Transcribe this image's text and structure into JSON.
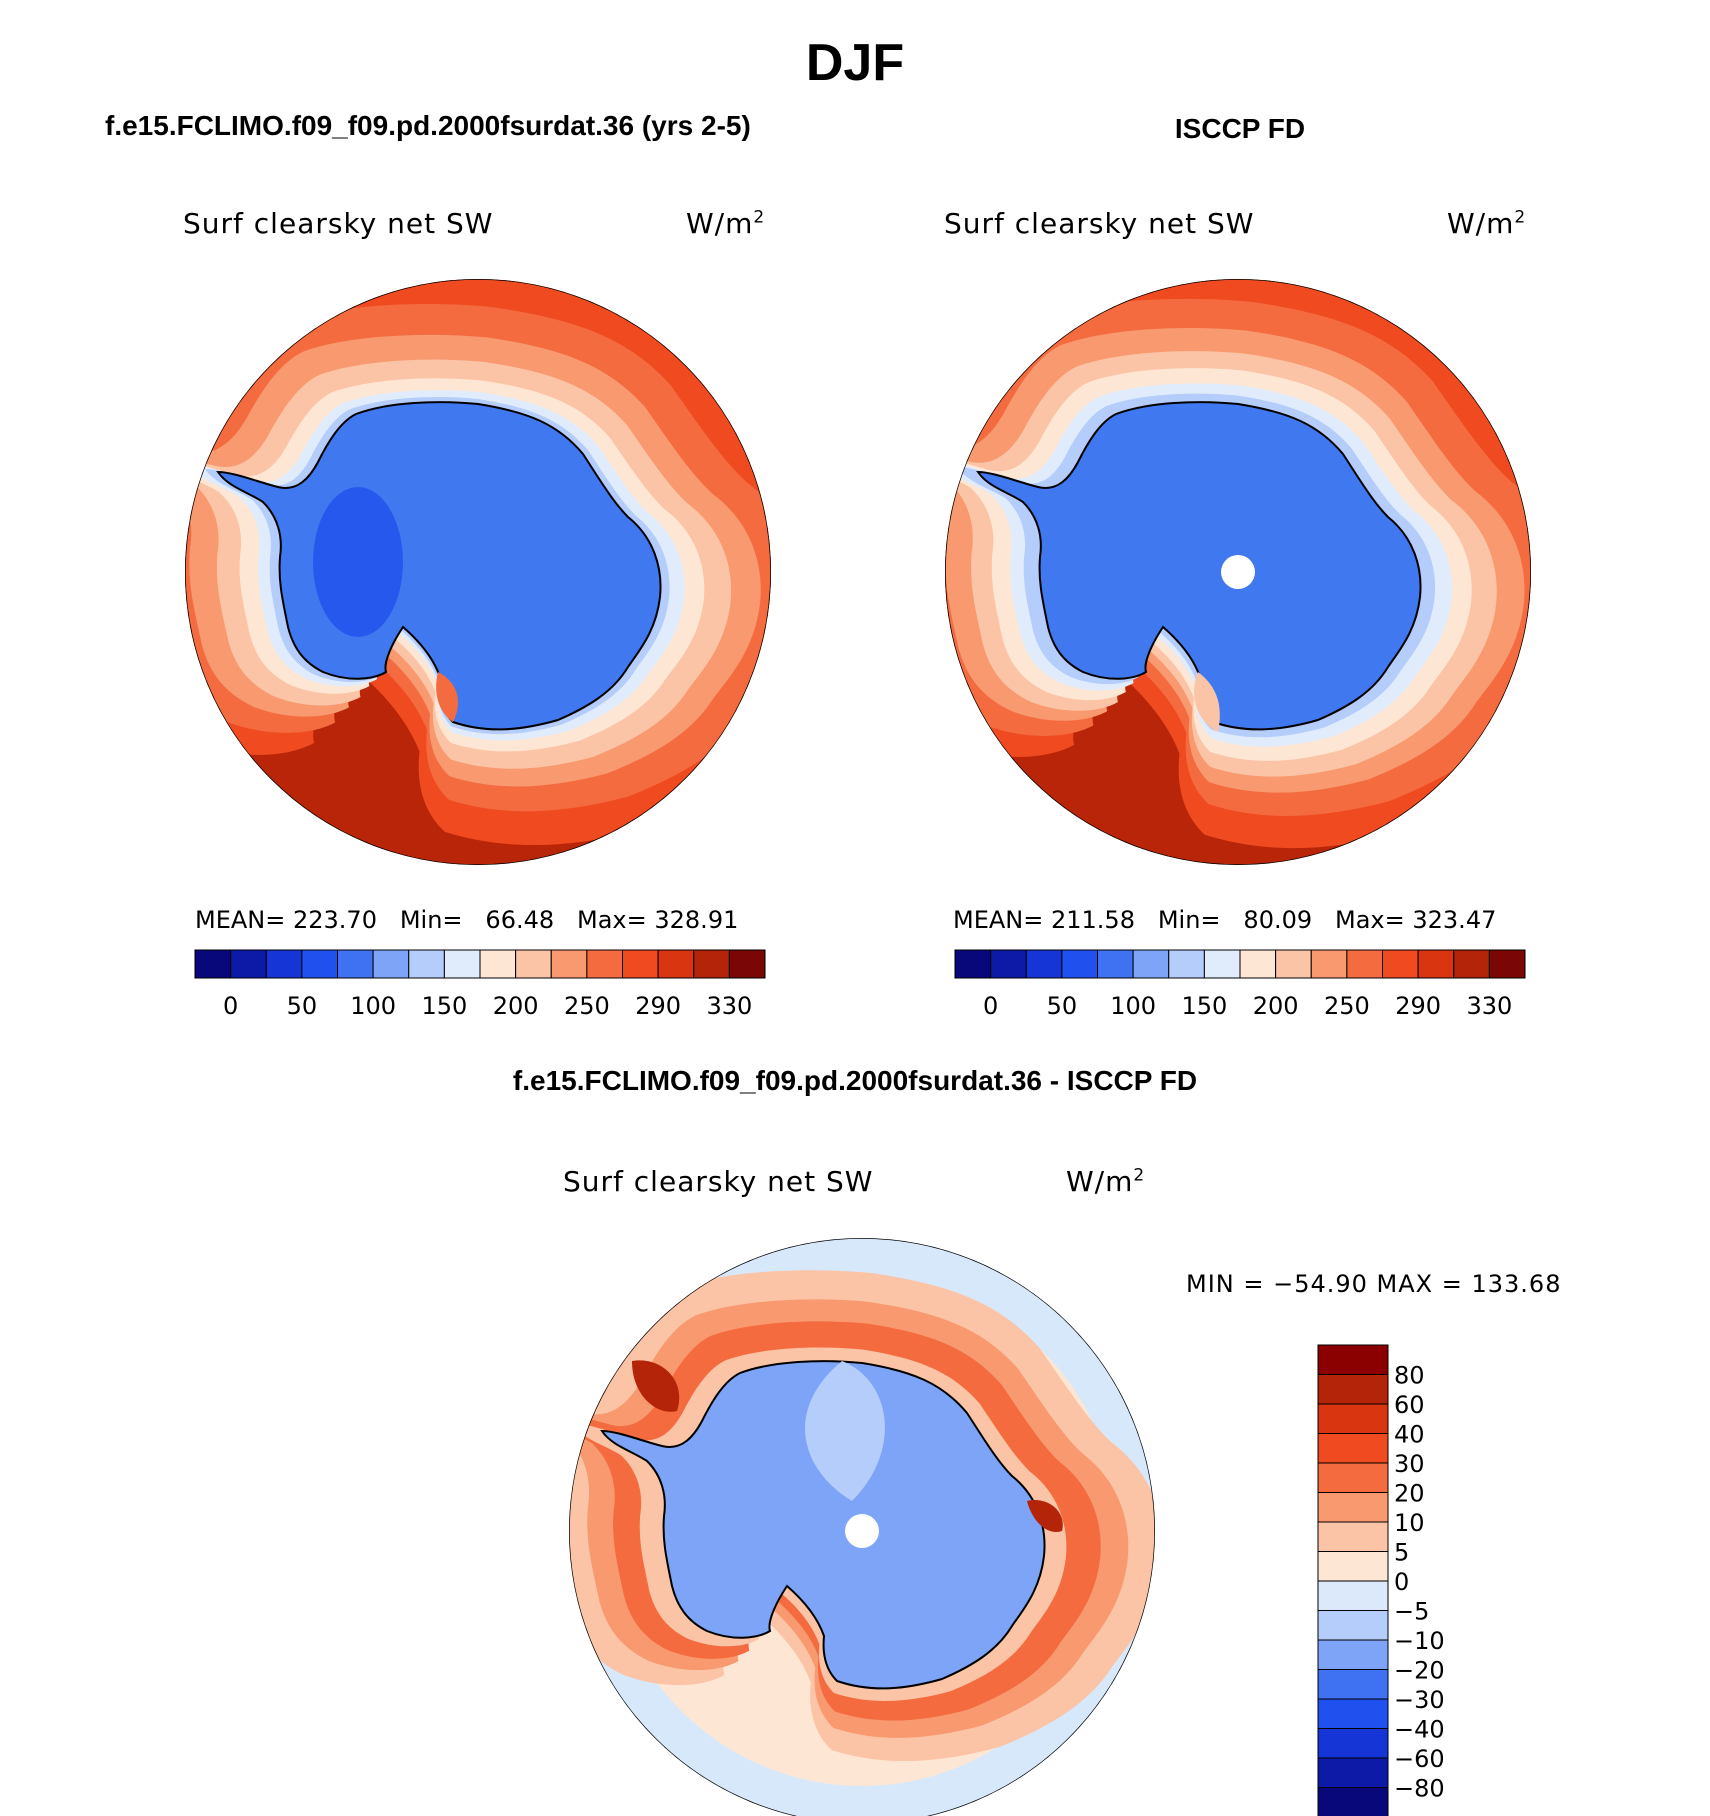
{
  "figure": {
    "season": "DJF",
    "panel1_title": "f.e15.FCLIMO.f09_f09.pd.2000fsurdat.36 (yrs 2-5)",
    "panel2_title": "ISCCP FD",
    "diff_title": "f.e15.FCLIMO.f09_f09.pd.2000fsurdat.36 - ISCCP FD"
  },
  "panels": [
    {
      "variable": "Surf clearsky net SW",
      "units_base": "W/m",
      "units_exp": "2",
      "stats": "MEAN= 223.70   Min=   66.48   Max= 328.91",
      "colorbar_ticks": [
        "0",
        "50",
        "100",
        "150",
        "200",
        "250",
        "290",
        "330"
      ]
    },
    {
      "variable": "Surf clearsky net SW",
      "units_base": "W/m",
      "units_exp": "2",
      "stats": "MEAN= 211.58   Min=   80.09   Max= 323.47",
      "colorbar_ticks": [
        "0",
        "50",
        "100",
        "150",
        "200",
        "250",
        "290",
        "330"
      ]
    }
  ],
  "diff": {
    "variable": "Surf clearsky net SW",
    "units_base": "W/m",
    "units_exp": "2",
    "stats": "MIN = −54.90 MAX = 133.68",
    "colorbar_ticks": [
      "80",
      "60",
      "40",
      "30",
      "20",
      "10",
      "5",
      "0",
      "−5",
      "−10",
      "−20",
      "−30",
      "−40",
      "−60",
      "−80"
    ]
  },
  "colors": {
    "abs_scale": [
      "#08087a",
      "#0d1aa8",
      "#1535d6",
      "#2050ee",
      "#3f72f2",
      "#7da4f7",
      "#b5cdfa",
      "#e0ecfc",
      "#fde6d4",
      "#fbc4a6",
      "#f8996f",
      "#f46b40",
      "#ef4a20",
      "#d93510",
      "#b42408",
      "#7a0606"
    ],
    "diff_scale": [
      "#8b0000",
      "#b42408",
      "#d93510",
      "#ef4a20",
      "#f46b40",
      "#f8996f",
      "#fbc4a6",
      "#fde6d4",
      "#dbe9fb",
      "#b5cdfa",
      "#7da4f7",
      "#3f72f2",
      "#2050ee",
      "#1535d6",
      "#0d1aa8",
      "#08087a"
    ],
    "ocean_far": "#b92508",
    "continent": "#4078f0",
    "diff_ocean": "#fde6d4",
    "diff_rim": "#d8e8fb"
  }
}
